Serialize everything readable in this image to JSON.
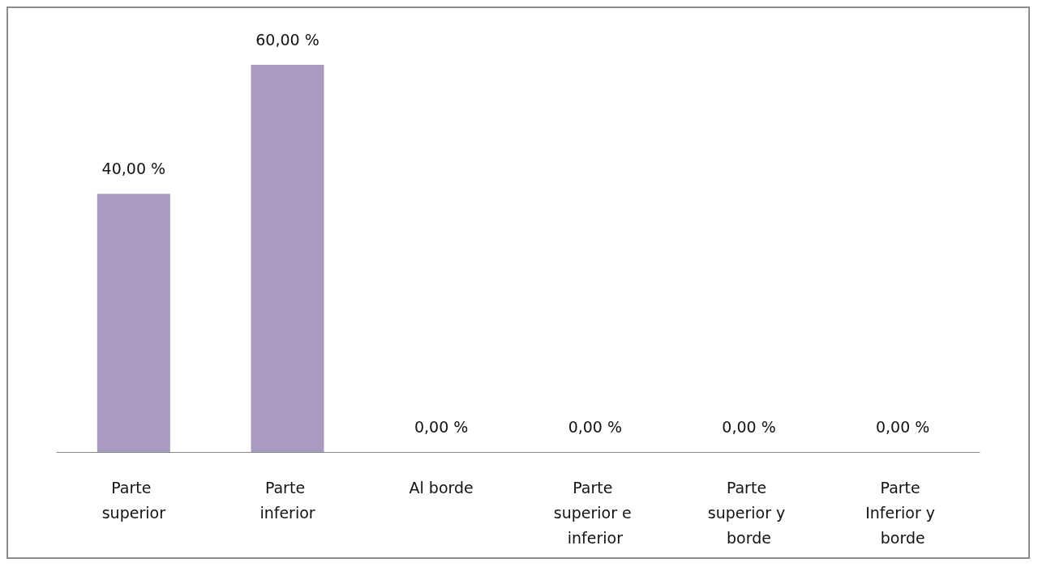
{
  "chart_data": {
    "type": "bar",
    "categories": [
      "Parte superior",
      "Parte inferior",
      "Al borde",
      "Parte superior e inferior",
      "Parte superior y borde",
      "Parte Inferior y borde"
    ],
    "values": [
      40,
      60,
      0,
      0,
      0,
      0
    ],
    "value_labels": [
      "40,00 %",
      "60,00 %",
      "0,00 %",
      "0,00 %",
      "0,00 %",
      "0,00 %"
    ],
    "color": "#a99bc0",
    "tick_labels": "x"
  }
}
